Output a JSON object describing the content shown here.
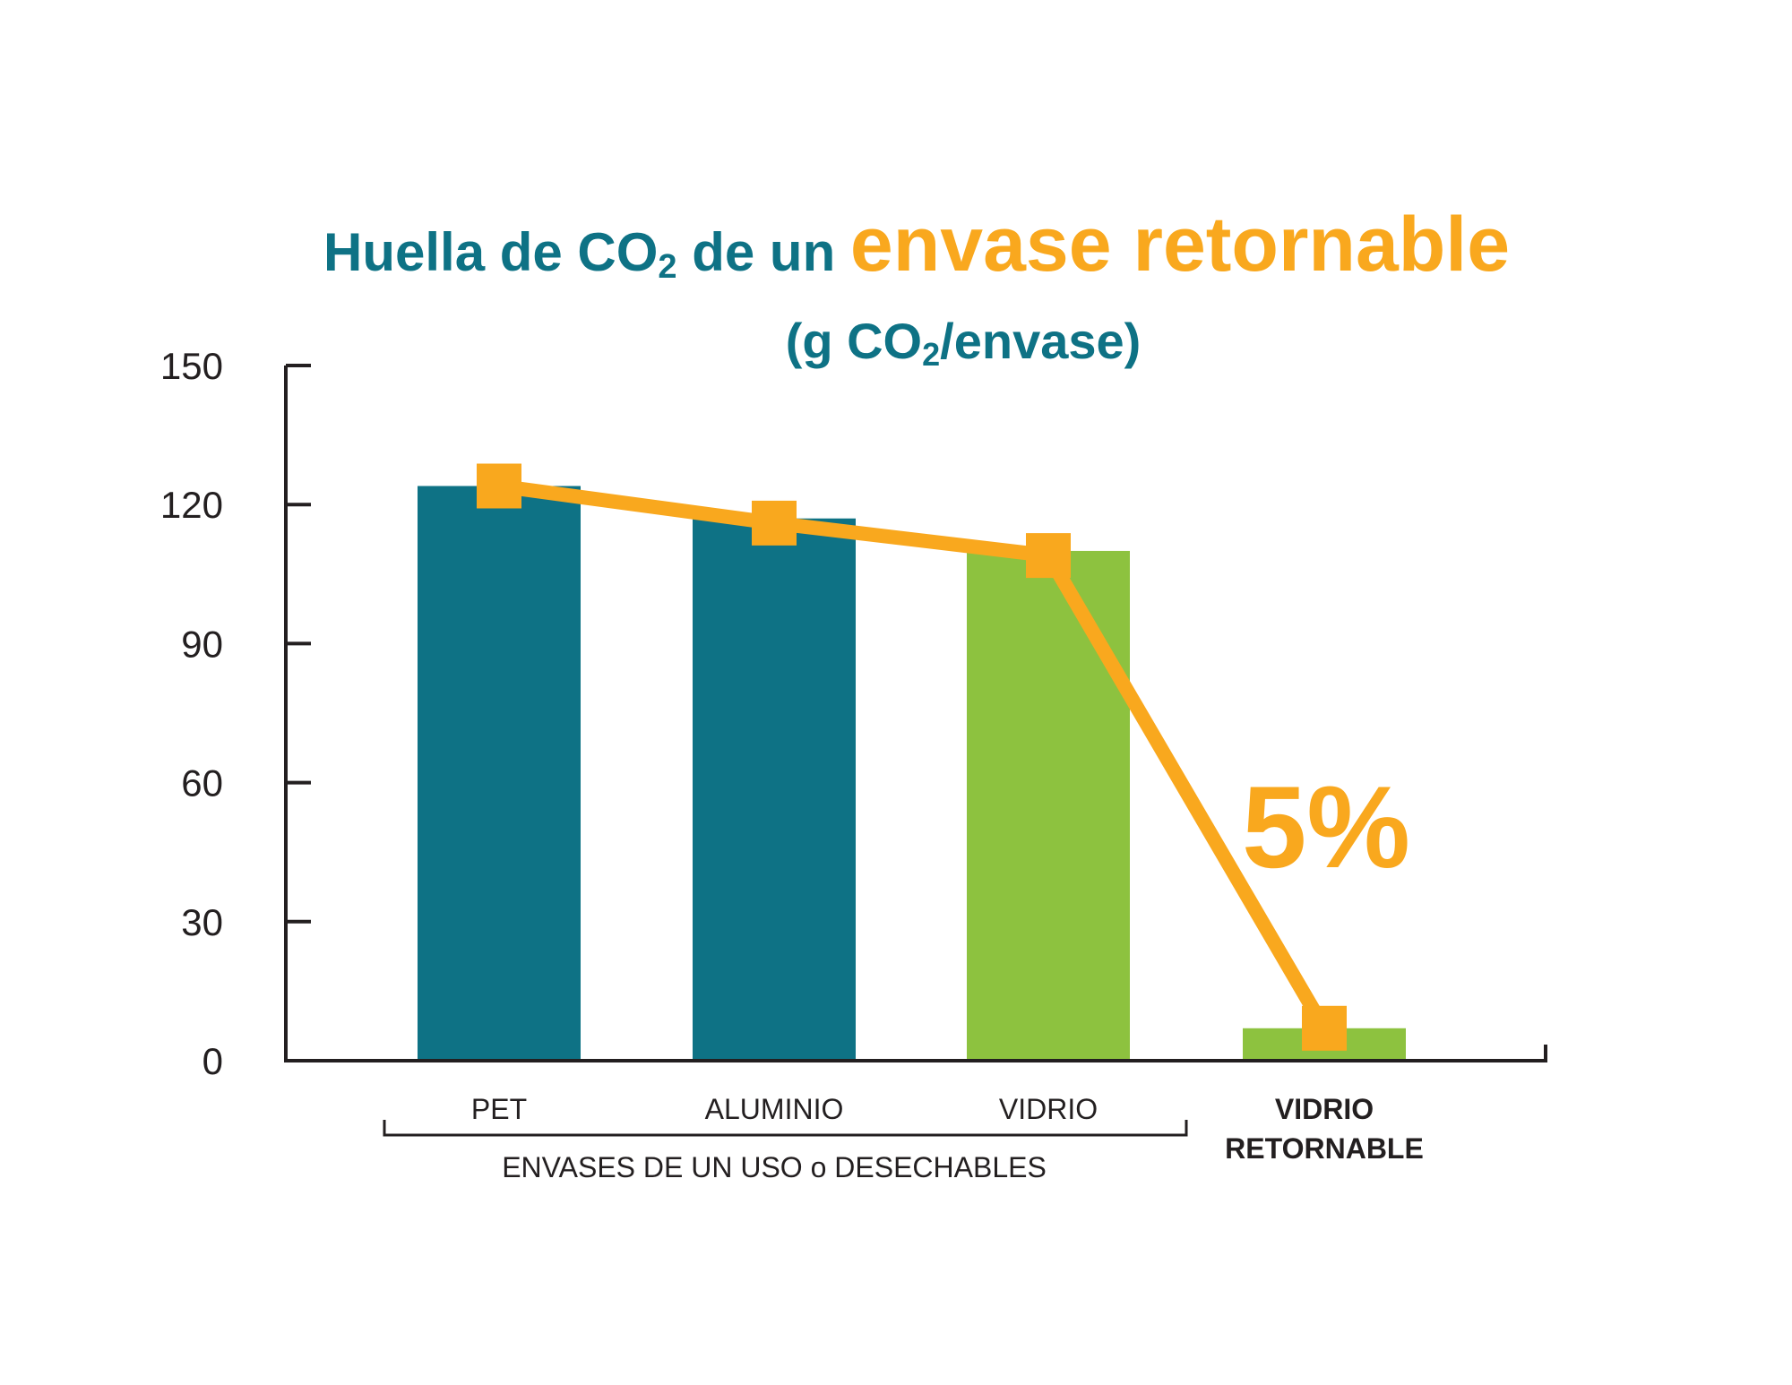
{
  "chart_data": {
    "type": "bar",
    "title_part1": "Huella de CO",
    "title_sub": "2",
    "title_part2": " de un ",
    "title_highlight": "envase retornable",
    "subtitle_open": "(g CO",
    "subtitle_sub": "2",
    "subtitle_close": "/envase)",
    "categories": [
      "PET",
      "ALUMINIO",
      "VIDRIO",
      "VIDRIO RETORNABLE"
    ],
    "category_lines": [
      [
        "PET"
      ],
      [
        "ALUMINIO"
      ],
      [
        "VIDRIO"
      ],
      [
        "VIDRIO",
        "RETORNABLE"
      ]
    ],
    "values": [
      124,
      117,
      110,
      7
    ],
    "line_values": [
      124,
      116,
      109,
      7
    ],
    "bar_colors": [
      "#0e7285",
      "#0e7285",
      "#8dc23f",
      "#8dc23f"
    ],
    "line_color": "#f9a81e",
    "group_label": "ENVASES DE UN USO o DESECHABLES",
    "annotation": "5%",
    "ylim": [
      0,
      150
    ],
    "yticks": [
      0,
      30,
      60,
      90,
      120,
      150
    ],
    "xlabel": "",
    "ylabel": "",
    "grid": false
  }
}
